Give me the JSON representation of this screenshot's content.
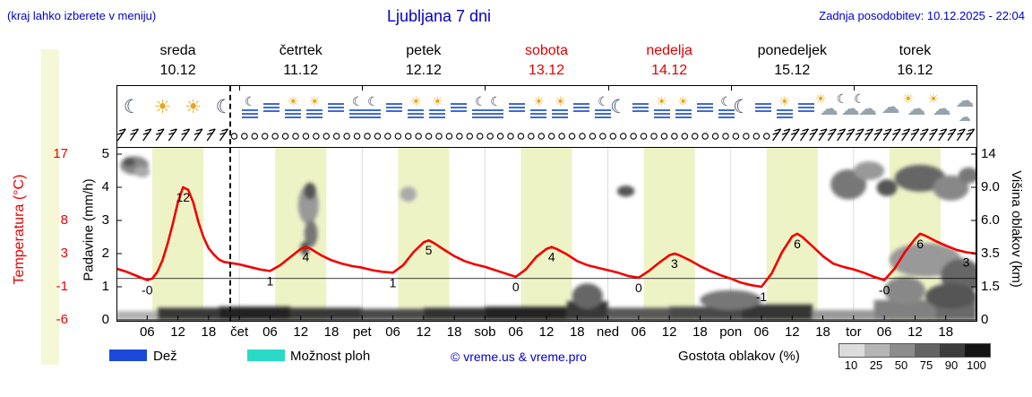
{
  "header": {
    "left_note": "(kraj lahko izberete v meniju)",
    "title": "Ljubljana 7 dni",
    "updated": "Zadnja posodobitev: 10.12.2025 - 22:04"
  },
  "axes": {
    "temperature": {
      "label": "Temperatura (°C)",
      "ticks": [
        "17",
        "8",
        "3",
        "-1",
        "-6"
      ],
      "tick_units": [
        5,
        3,
        2,
        1,
        0
      ]
    },
    "precipitation": {
      "label": "Padavine (mm/h)",
      "ticks": [
        "5",
        "4",
        "3",
        "2",
        "1",
        "0"
      ],
      "tick_units": [
        5,
        4,
        3,
        2,
        1,
        0
      ]
    },
    "cloud_height": {
      "label": "Višina oblakov (km)",
      "ticks": [
        "14",
        "9.0",
        "6.0",
        "3.5",
        "1.5",
        "0"
      ],
      "tick_units": [
        5,
        4,
        3,
        2,
        1,
        0
      ]
    }
  },
  "days": [
    {
      "name": "sreda",
      "date": "10.12",
      "red": false,
      "icons": [
        "moon",
        "sun",
        "sun",
        "moon"
      ]
    },
    {
      "name": "četrtek",
      "date": "11.12",
      "red": false,
      "icons": [
        "fog-moon",
        "fog",
        "fog-sun",
        "fog-sun",
        "fog",
        "fog-moon"
      ]
    },
    {
      "name": "petek",
      "date": "12.12",
      "red": false,
      "icons": [
        "fog-moon",
        "fog",
        "fog-sun",
        "fog-sun",
        "fog",
        "fog-moon"
      ]
    },
    {
      "name": "sobota",
      "date": "13.12",
      "red": true,
      "icons": [
        "fog-moon",
        "fog",
        "fog-sun",
        "fog-sun",
        "fog",
        "fog-moon"
      ]
    },
    {
      "name": "nedelja",
      "date": "14.12",
      "red": true,
      "icons": [
        "moon",
        "fog",
        "fog-sun",
        "fog-sun",
        "fog",
        "fog-moon"
      ]
    },
    {
      "name": "ponedeljek",
      "date": "15.12",
      "red": false,
      "icons": [
        "moon",
        "fog",
        "fog-sun",
        "fog",
        "sun-cloud",
        "cloud-moon"
      ]
    },
    {
      "name": "torek",
      "date": "16.12",
      "red": false,
      "icons": [
        "cloud-moon",
        "cloud",
        "sun-cloud",
        "cloud-sun",
        "clouds"
      ]
    }
  ],
  "icon_glyphs": {
    "sun": "☀",
    "moon": "☾",
    "cloud": "☁"
  },
  "xaxis": {
    "hour_labels": [
      "06",
      "12",
      "18"
    ],
    "day_abbrevs": [
      "čet",
      "pet",
      "sob",
      "ned",
      "pon",
      "tor"
    ]
  },
  "legend": {
    "rain": "Dež",
    "showers": "Možnost ploh",
    "copyright": "© vreme.us & vreme.pro",
    "cloud_density": "Gostota oblakov (%)",
    "density_ticks": [
      "10",
      "25",
      "50",
      "75",
      "90",
      "100"
    ],
    "rain_color": "#1c49d8",
    "showers_color": "#2bd9c7",
    "density_colors": [
      "#dcdcdc",
      "#b4b4b4",
      "#8c8c8c",
      "#646464",
      "#3c3c3c",
      "#141414"
    ]
  },
  "chart_data": {
    "type": "line",
    "title": "Ljubljana 7 dni — meteogram: temperatura, padavine, oblaki, veter",
    "x_unit": "hour, 0 = 10.12 00:00",
    "x_range": [
      0,
      168
    ],
    "daytime_hours": [
      7,
      17
    ],
    "band_color": "#eef3c6",
    "curve_color": "#f20000",
    "temperature_axis_anchors": {
      "temps": [
        -6,
        -1,
        3,
        8,
        12,
        17
      ],
      "units": [
        0,
        1,
        2,
        3,
        4,
        5
      ]
    },
    "cloud_height_axis_anchors": {
      "km": [
        0,
        1.5,
        3.5,
        6,
        9,
        14
      ],
      "units": [
        0,
        1,
        2,
        3,
        4,
        5
      ]
    },
    "freezing_line_temp": 0,
    "now_line_hour": 22,
    "precipitation_series": [],
    "temperature_series": [
      [
        0,
        1.2
      ],
      [
        2,
        0.8
      ],
      [
        4,
        0.3
      ],
      [
        6,
        -0.2
      ],
      [
        7,
        0
      ],
      [
        8,
        0.8
      ],
      [
        9,
        2.2
      ],
      [
        10,
        4.5
      ],
      [
        11,
        7.5
      ],
      [
        12,
        10.2
      ],
      [
        13,
        12
      ],
      [
        14,
        11.7
      ],
      [
        15,
        10.2
      ],
      [
        16,
        7.8
      ],
      [
        17,
        5.5
      ],
      [
        18,
        3.8
      ],
      [
        19,
        2.9
      ],
      [
        20,
        2.3
      ],
      [
        21,
        2
      ],
      [
        22,
        1.9
      ],
      [
        24,
        1.7
      ],
      [
        26,
        1.4
      ],
      [
        28,
        1.1
      ],
      [
        30,
        0.9
      ],
      [
        32,
        1.6
      ],
      [
        34,
        2.6
      ],
      [
        36,
        3.7
      ],
      [
        37,
        4
      ],
      [
        38,
        3.7
      ],
      [
        39,
        3.2
      ],
      [
        40,
        2.8
      ],
      [
        42,
        2.2
      ],
      [
        44,
        1.8
      ],
      [
        46,
        1.5
      ],
      [
        48,
        1.3
      ],
      [
        50,
        1
      ],
      [
        52,
        0.8
      ],
      [
        54,
        0.7
      ],
      [
        56,
        1.6
      ],
      [
        58,
        3.2
      ],
      [
        60,
        4.7
      ],
      [
        61,
        5
      ],
      [
        62,
        4.6
      ],
      [
        64,
        3.6
      ],
      [
        66,
        2.7
      ],
      [
        68,
        2.1
      ],
      [
        70,
        1.7
      ],
      [
        72,
        1.4
      ],
      [
        74,
        1
      ],
      [
        76,
        0.6
      ],
      [
        78,
        0.2
      ],
      [
        80,
        1.1
      ],
      [
        82,
        2.6
      ],
      [
        84,
        3.7
      ],
      [
        85,
        4
      ],
      [
        86,
        3.7
      ],
      [
        88,
        2.9
      ],
      [
        90,
        2.1
      ],
      [
        92,
        1.6
      ],
      [
        94,
        1.3
      ],
      [
        96,
        1
      ],
      [
        98,
        0.7
      ],
      [
        100,
        0.3
      ],
      [
        102,
        0.1
      ],
      [
        104,
        0.9
      ],
      [
        106,
        1.9
      ],
      [
        108,
        2.8
      ],
      [
        109,
        3
      ],
      [
        110,
        2.8
      ],
      [
        112,
        2.2
      ],
      [
        114,
        1.5
      ],
      [
        116,
        0.9
      ],
      [
        118,
        0.4
      ],
      [
        120,
        0
      ],
      [
        122,
        -0.5
      ],
      [
        124,
        -0.8
      ],
      [
        126,
        -1
      ],
      [
        128,
        0.6
      ],
      [
        130,
        3.2
      ],
      [
        132,
        5.6
      ],
      [
        133,
        6
      ],
      [
        134,
        5.5
      ],
      [
        136,
        4.1
      ],
      [
        138,
        2.7
      ],
      [
        140,
        1.8
      ],
      [
        142,
        1.4
      ],
      [
        144,
        1.1
      ],
      [
        146,
        0.7
      ],
      [
        148,
        0.2
      ],
      [
        150,
        -0.2
      ],
      [
        152,
        1.2
      ],
      [
        154,
        3.2
      ],
      [
        156,
        5.2
      ],
      [
        157,
        6
      ],
      [
        158,
        5.7
      ],
      [
        160,
        4.9
      ],
      [
        162,
        4.2
      ],
      [
        164,
        3.6
      ],
      [
        166,
        3.2
      ],
      [
        168,
        3
      ]
    ],
    "temperature_labels": [
      [
        6,
        "-0"
      ],
      [
        13,
        "12"
      ],
      [
        30,
        "1"
      ],
      [
        37,
        "4"
      ],
      [
        54,
        "1"
      ],
      [
        61,
        "5"
      ],
      [
        78,
        "0"
      ],
      [
        85,
        "4"
      ],
      [
        102,
        "0"
      ],
      [
        109,
        "3"
      ],
      [
        126,
        "-1"
      ],
      [
        133,
        "6"
      ],
      [
        150,
        "-0"
      ],
      [
        157,
        "6"
      ],
      [
        166,
        "3"
      ]
    ],
    "wind": {
      "barb_hours_start": [
        1,
        3.5,
        6,
        8.5,
        11,
        13.5,
        16,
        18.5,
        21
      ],
      "calm_circles": {
        "from": 23,
        "to": 127,
        "step": 2
      },
      "barb_hours_end": [
        129,
        130.8,
        132.6,
        134.4,
        136.2,
        138,
        139.8,
        141.6,
        143.4,
        145.2,
        147,
        148.8,
        150.6,
        152.4,
        154.2,
        156,
        157.8,
        159.6,
        161.4,
        163.2,
        165,
        166.8
      ]
    },
    "clouds": {
      "ground_band": [
        [
          0,
          8,
          0.4,
          "#b0b0b0"
        ],
        [
          8,
          20,
          0.55,
          "#383838"
        ],
        [
          20,
          34,
          0.6,
          "#242424"
        ],
        [
          34,
          48,
          0.55,
          "#383838"
        ],
        [
          48,
          60,
          0.5,
          "#484848"
        ],
        [
          60,
          72,
          0.55,
          "#303030"
        ],
        [
          72,
          88,
          0.6,
          "#242424"
        ],
        [
          88,
          96,
          0.85,
          "#383838"
        ],
        [
          96,
          108,
          0.55,
          "#585858"
        ],
        [
          108,
          122,
          0.6,
          "#484848"
        ],
        [
          122,
          136,
          0.7,
          "#343434"
        ],
        [
          136,
          148,
          0.45,
          "#989898"
        ],
        [
          148,
          160,
          0.9,
          "#808080"
        ],
        [
          160,
          168,
          1.2,
          "#6a6a6a"
        ]
      ],
      "blobs": [
        [
          3.5,
          12.3,
          2.8,
          1.4,
          "#888888"
        ],
        [
          2.5,
          12.8,
          1.2,
          0.7,
          "#555555"
        ],
        [
          5,
          11.3,
          1.5,
          0.8,
          "#aaaaaa"
        ],
        [
          37.5,
          7.5,
          2.0,
          1.8,
          "#999999"
        ],
        [
          37.8,
          8.8,
          1.2,
          0.9,
          "#555555"
        ],
        [
          38,
          5.0,
          1.3,
          1.0,
          "#777777"
        ],
        [
          36.8,
          3.9,
          0.9,
          0.5,
          "#555555"
        ],
        [
          57,
          8.4,
          1.6,
          0.7,
          "#aaaaaa"
        ],
        [
          99.5,
          8.7,
          1.7,
          0.55,
          "#555555"
        ],
        [
          143,
          9.8,
          3.5,
          1.9,
          "#777777"
        ],
        [
          147,
          11.5,
          3.0,
          1.4,
          "#999999"
        ],
        [
          150.5,
          9.2,
          2.0,
          1.0,
          "#555555"
        ],
        [
          157,
          10.5,
          5.0,
          1.9,
          "#666666"
        ],
        [
          163,
          9.3,
          3.5,
          1.5,
          "#888888"
        ],
        [
          166.5,
          10.8,
          2.0,
          1.2,
          "#777777"
        ],
        [
          158,
          3.2,
          7.0,
          1.1,
          "#999999"
        ],
        [
          165,
          2.2,
          4.0,
          1.0,
          "#666666"
        ],
        [
          154,
          1.4,
          4.0,
          0.7,
          "#888888"
        ],
        [
          163,
          1.1,
          5.0,
          0.6,
          "#555555"
        ],
        [
          92,
          1.1,
          3.0,
          0.6,
          "#666666"
        ],
        [
          120,
          0.9,
          6.0,
          0.45,
          "#777777"
        ]
      ]
    }
  }
}
